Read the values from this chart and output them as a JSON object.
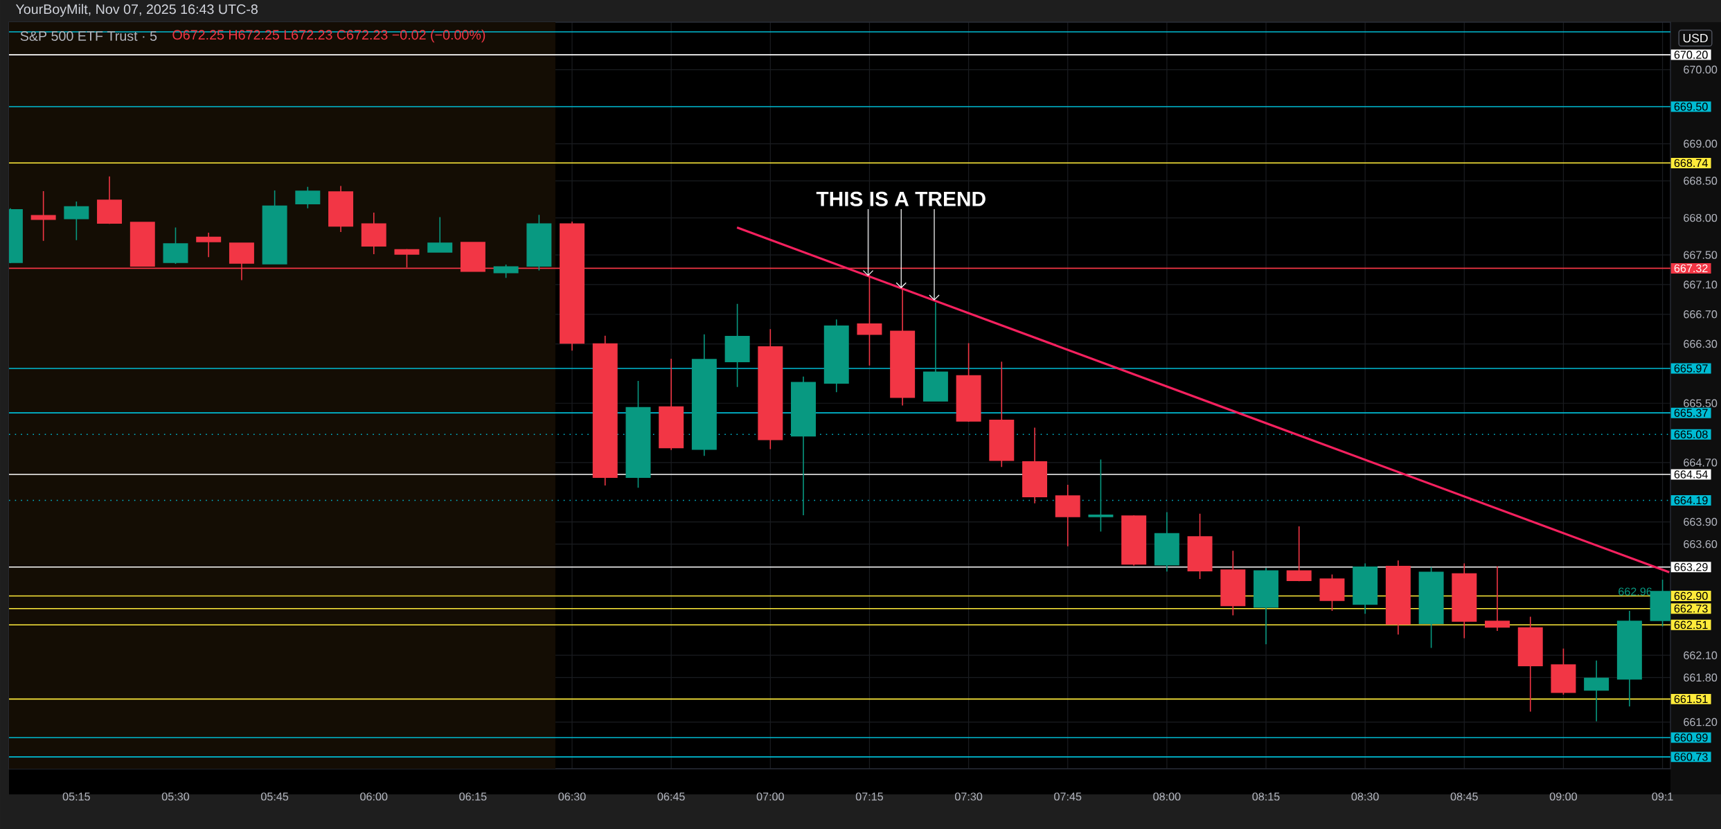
{
  "chart_data": {
    "type": "candlestick",
    "title": "S&P 500 ETF Trust · 5",
    "subtitle": "O672.25 H672.25 L672.23 C672.23 −0.02 (−0.00%)",
    "annotations": [
      "YourBoyMilt, Nov 07, 2025 16:43 UTC-8",
      "USD",
      {
        "text": "THIS IS A TREND",
        "x": 7.33,
        "y": 667.09
      },
      {
        "text": "662.96",
        "x": 9.25,
        "y": 662.96
      }
    ],
    "xlim": [
      5.08,
      9.27
    ],
    "ylim": [
      660.57,
      670.64
    ],
    "xticks": [
      {
        "value": 5.25,
        "label": "05:15"
      },
      {
        "value": 5.5,
        "label": "05:30"
      },
      {
        "value": 5.75,
        "label": "05:45"
      },
      {
        "value": 6,
        "label": "06:00"
      },
      {
        "value": 6.25,
        "label": "06:15"
      },
      {
        "value": 6.5,
        "label": "06:30"
      },
      {
        "value": 6.75,
        "label": "06:45"
      },
      {
        "value": 7,
        "label": "07:00"
      },
      {
        "value": 7.25,
        "label": "07:15"
      },
      {
        "value": 7.5,
        "label": "07:30"
      },
      {
        "value": 7.75,
        "label": "07:45"
      },
      {
        "value": 8,
        "label": "08:00"
      },
      {
        "value": 8.25,
        "label": "08:15"
      },
      {
        "value": 8.5,
        "label": "08:30"
      },
      {
        "value": 8.75,
        "label": "08:45"
      },
      {
        "value": 9,
        "label": "09:00"
      },
      {
        "value": 9.25,
        "label": "09:1"
      }
    ],
    "yticks": [
      {
        "value": 670,
        "label": "670.00"
      },
      {
        "value": 669,
        "label": "669.00"
      },
      {
        "value": 668.5,
        "label": "668.50"
      },
      {
        "value": 668,
        "label": "668.00"
      },
      {
        "value": 667.5,
        "label": "667.50"
      },
      {
        "value": 667.1,
        "label": "667.10"
      },
      {
        "value": 666.7,
        "label": "666.70"
      },
      {
        "value": 666.3,
        "label": "666.30"
      },
      {
        "value": 665.5,
        "label": "665.50"
      },
      {
        "value": 664.7,
        "label": "664.70"
      },
      {
        "value": 663.9,
        "label": "663.90"
      },
      {
        "value": 663.6,
        "label": "663.60"
      },
      {
        "value": 662.1,
        "label": "662.10"
      },
      {
        "value": 661.8,
        "label": "661.80"
      },
      {
        "value": 661.2,
        "label": "661.20"
      }
    ],
    "grid": true,
    "bands": [
      {
        "axis": "x",
        "from": 5.08,
        "to": 6.458,
        "color": "#140d04"
      }
    ],
    "ref_lines": [
      {
        "axis": "y",
        "value": 670.51,
        "color": "#00bcd4"
      },
      {
        "axis": "y",
        "value": 670.2,
        "label": "670.20",
        "color": "#ffffff"
      },
      {
        "axis": "y",
        "value": 669.5,
        "label": "669.50",
        "color": "#00bcd4"
      },
      {
        "axis": "y",
        "value": 668.74,
        "label": "668.74",
        "color": "#ffeb3b"
      },
      {
        "axis": "y",
        "value": 667.32,
        "label": "667.32",
        "color": "#f23645"
      },
      {
        "axis": "y",
        "value": 665.97,
        "label": "665.97",
        "color": "#00bcd4"
      },
      {
        "axis": "y",
        "value": 665.37,
        "label": "665.37",
        "color": "#00bcd4"
      },
      {
        "axis": "y",
        "value": 665.08,
        "label": "665.08",
        "color": "#00bcd4",
        "line_style": "dotted"
      },
      {
        "axis": "y",
        "value": 664.54,
        "label": "664.54",
        "color": "#ffffff"
      },
      {
        "axis": "y",
        "value": 664.19,
        "label": "664.19",
        "color": "#00bcd4",
        "line_style": "dotted"
      },
      {
        "axis": "y",
        "value": 663.29,
        "label": "663.29",
        "color": "#ffffff"
      },
      {
        "axis": "y",
        "value": 662.9,
        "label": "662.90",
        "color": "#ffeb3b"
      },
      {
        "axis": "y",
        "value": 662.73,
        "label": "662.73",
        "color": "#ffeb3b"
      },
      {
        "axis": "y",
        "value": 662.51,
        "label": "662.51",
        "color": "#ffeb3b"
      },
      {
        "axis": "y",
        "value": 661.51,
        "label": "661.51",
        "color": "#ffeb3b"
      },
      {
        "axis": "y",
        "value": 660.99,
        "label": "660.99",
        "color": "#00bcd4"
      },
      {
        "axis": "y",
        "value": 660.73,
        "label": "660.73",
        "color": "#00bcd4"
      }
    ],
    "series": [
      {
        "x": [
          5.0833,
          5.1667,
          5.25,
          5.3333,
          5.4167,
          5.5,
          5.5833,
          5.6667,
          5.75,
          5.8333,
          5.9167,
          6,
          6.0833,
          6.1667,
          6.25,
          6.3333,
          6.4167,
          6.5,
          6.5833,
          6.6667,
          6.75,
          6.8333,
          6.9167,
          7,
          7.0833,
          7.1667,
          7.25,
          7.3333,
          7.4167,
          7.5,
          7.5833,
          7.6667,
          7.75,
          7.8333,
          7.9167,
          8,
          8.0833,
          8.1667,
          8.25,
          8.3333,
          8.4167,
          8.5,
          8.5833,
          8.6667,
          8.75,
          8.8333,
          8.9167,
          9,
          9.0833,
          9.1667,
          9.25
        ],
        "ohlc": [
          [
            667.4,
            668.13,
            667.39,
            668.11
          ],
          [
            668.03,
            668.36,
            667.69,
            667.98
          ],
          [
            667.99,
            668.22,
            667.7,
            668.15
          ],
          [
            668.24,
            668.56,
            667.92,
            667.93
          ],
          [
            667.94,
            667.94,
            667.35,
            667.35
          ],
          [
            667.4,
            667.87,
            667.38,
            667.65
          ],
          [
            667.74,
            667.8,
            667.47,
            667.68
          ],
          [
            667.66,
            667.66,
            667.16,
            667.39
          ],
          [
            667.38,
            668.37,
            667.38,
            668.16
          ],
          [
            668.19,
            668.42,
            668.13,
            668.36
          ],
          [
            668.35,
            668.43,
            667.81,
            667.89
          ],
          [
            667.92,
            668.07,
            667.51,
            667.62
          ],
          [
            667.57,
            667.58,
            667.33,
            667.51
          ],
          [
            667.54,
            668.01,
            667.54,
            667.66
          ],
          [
            667.67,
            667.67,
            667.28,
            667.28
          ],
          [
            667.26,
            667.37,
            667.19,
            667.34
          ],
          [
            667.35,
            668.04,
            667.29,
            667.92
          ],
          [
            667.92,
            667.95,
            666.21,
            666.31
          ],
          [
            666.3,
            666.41,
            664.39,
            664.5
          ],
          [
            664.5,
            665.8,
            664.36,
            665.44
          ],
          [
            665.45,
            666.1,
            664.87,
            664.9
          ],
          [
            664.88,
            666.43,
            664.79,
            666.09
          ],
          [
            666.06,
            666.84,
            665.72,
            666.4
          ],
          [
            666.26,
            666.5,
            664.88,
            665.01
          ],
          [
            665.06,
            665.86,
            663.99,
            665.78
          ],
          [
            665.77,
            666.63,
            665.65,
            666.54
          ],
          [
            666.57,
            667.23,
            666.01,
            666.43
          ],
          [
            666.47,
            667.05,
            665.47,
            665.58
          ],
          [
            665.53,
            666.86,
            665.53,
            665.92
          ],
          [
            665.87,
            666.31,
            665.25,
            665.26
          ],
          [
            665.27,
            666.06,
            664.64,
            664.73
          ],
          [
            664.71,
            665.17,
            664.15,
            664.24
          ],
          [
            664.25,
            664.4,
            663.57,
            663.97
          ],
          [
            663.97,
            664.74,
            663.77,
            663.99
          ],
          [
            663.98,
            663.99,
            663.31,
            663.33
          ],
          [
            663.32,
            664.03,
            663.23,
            663.74
          ],
          [
            663.7,
            664.01,
            663.13,
            663.24
          ],
          [
            663.25,
            663.51,
            662.64,
            662.77
          ],
          [
            662.75,
            663.28,
            662.25,
            663.24
          ],
          [
            663.24,
            663.84,
            663.1,
            663.11
          ],
          [
            663.13,
            663.19,
            662.7,
            662.84
          ],
          [
            662.79,
            663.34,
            662.66,
            663.29
          ],
          [
            663.3,
            663.38,
            662.38,
            662.52
          ],
          [
            662.53,
            663.29,
            662.2,
            663.22
          ],
          [
            663.2,
            663.34,
            662.33,
            662.56
          ],
          [
            662.56,
            663.3,
            662.43,
            662.48
          ],
          [
            662.47,
            662.62,
            661.34,
            661.96
          ],
          [
            661.97,
            662.19,
            661.57,
            661.6
          ],
          [
            661.63,
            662.03,
            661.21,
            661.79
          ],
          [
            661.78,
            662.7,
            661.41,
            662.56
          ],
          [
            662.57,
            663.12,
            662.49,
            662.96
          ]
        ],
        "colors": [
          "#089981",
          "#f23645",
          "#089981",
          "#f23645",
          "#f23645",
          "#089981",
          "#f23645",
          "#f23645",
          "#089981",
          "#089981",
          "#f23645",
          "#f23645",
          "#f23645",
          "#089981",
          "#f23645",
          "#089981",
          "#089981",
          "#f23645",
          "#f23645",
          "#089981",
          "#f23645",
          "#089981",
          "#089981",
          "#f23645",
          "#089981",
          "#089981",
          "#f23645",
          "#f23645",
          "#089981",
          "#f23645",
          "#f23645",
          "#f23645",
          "#f23645",
          "#089981",
          "#f23645",
          "#089981",
          "#f23645",
          "#f23645",
          "#089981",
          "#f23645",
          "#f23645",
          "#089981",
          "#f23645",
          "#089981",
          "#f23645",
          "#f23645",
          "#f23645",
          "#f23645",
          "#089981",
          "#089981",
          "#089981"
        ]
      },
      {
        "type": "line",
        "x": [
          6.916,
          9.267
        ],
        "values": [
          667.87,
          663.22
        ],
        "color": "#f7215f"
      }
    ]
  }
}
